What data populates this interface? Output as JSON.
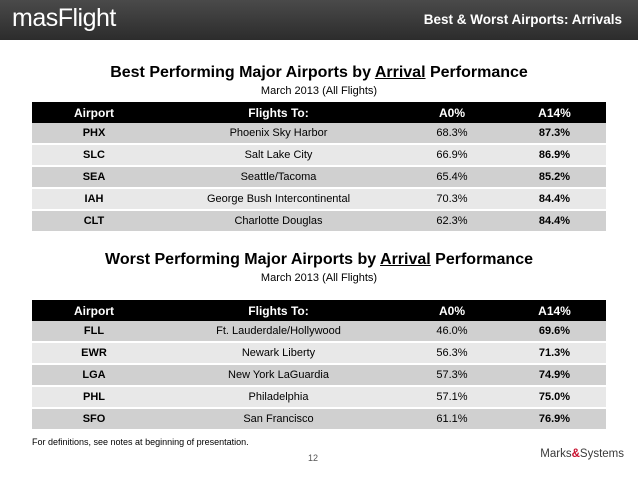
{
  "header": {
    "logo_text": "masFlight",
    "slide_title": "Best & Worst Airports: Arrivals"
  },
  "best": {
    "title_prefix": "Best Performing Major Airports by ",
    "title_underlined": "Arrival",
    "title_suffix": " Performance",
    "subtitle": "March 2013 (All Flights)",
    "columns": [
      "Airport",
      "Flights To:",
      "A0%",
      "A14%"
    ],
    "rows": [
      {
        "code": "PHX",
        "name": "Phoenix Sky Harbor",
        "a0": "68.3%",
        "a14": "87.3%"
      },
      {
        "code": "SLC",
        "name": "Salt Lake City",
        "a0": "66.9%",
        "a14": "86.9%"
      },
      {
        "code": "SEA",
        "name": "Seattle/Tacoma",
        "a0": "65.4%",
        "a14": "85.2%"
      },
      {
        "code": "IAH",
        "name": "George Bush Intercontinental",
        "a0": "70.3%",
        "a14": "84.4%"
      },
      {
        "code": "CLT",
        "name": "Charlotte Douglas",
        "a0": "62.3%",
        "a14": "84.4%"
      }
    ]
  },
  "worst": {
    "title_prefix": "Worst Performing Major Airports by ",
    "title_underlined": "Arrival",
    "title_suffix": " Performance",
    "subtitle": "March 2013 (All Flights)",
    "columns": [
      "Airport",
      "Flights To:",
      "A0%",
      "A14%"
    ],
    "rows": [
      {
        "code": "FLL",
        "name": "Ft. Lauderdale/Hollywood",
        "a0": "46.0%",
        "a14": "69.6%"
      },
      {
        "code": "EWR",
        "name": "Newark Liberty",
        "a0": "56.3%",
        "a14": "71.3%"
      },
      {
        "code": "LGA",
        "name": "New York LaGuardia",
        "a0": "57.3%",
        "a14": "74.9%"
      },
      {
        "code": "PHL",
        "name": "Philadelphia",
        "a0": "57.1%",
        "a14": "75.0%"
      },
      {
        "code": "SFO",
        "name": "San Francisco",
        "a0": "61.1%",
        "a14": "76.9%"
      }
    ]
  },
  "footer": {
    "note": "For definitions, see notes at beginning of presentation.",
    "page_number": "12",
    "logo_left": "Marks",
    "logo_amp": "&",
    "logo_right": "Systems"
  }
}
